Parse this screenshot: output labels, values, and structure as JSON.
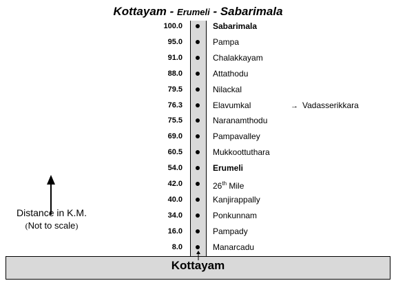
{
  "title": {
    "from": "Kottayam - ",
    "via": "Erumeli",
    "to": " - Sabarimala"
  },
  "stops": [
    {
      "km": "100.0",
      "name": "Sabarimala",
      "bold": true
    },
    {
      "km": "95.0",
      "name": "Pampa"
    },
    {
      "km": "91.0",
      "name": "Chalakkayam"
    },
    {
      "km": "88.0",
      "name": "Attathodu"
    },
    {
      "km": "79.5",
      "name": "Nilackal"
    },
    {
      "km": "76.3",
      "name": "Elavumkal",
      "branch": "Vadasserikkara"
    },
    {
      "km": "75.5",
      "name": "Naranamthodu"
    },
    {
      "km": "69.0",
      "name": "Pampavalley"
    },
    {
      "km": "60.5",
      "name": "Mukkoottuthara"
    },
    {
      "km": "54.0",
      "name": "Erumeli",
      "bold": true
    },
    {
      "km": "42.0",
      "name_prefix": "26",
      "name_sup": "th",
      "name_suffix": " Mile"
    },
    {
      "km": "40.0",
      "name": "Kanjirappally"
    },
    {
      "km": "34.0",
      "name": "Ponkunnam"
    },
    {
      "km": "16.0",
      "name": "Pampady"
    },
    {
      "km": "8.0",
      "name": "Manarcadu"
    }
  ],
  "origin": "Kottayam",
  "legend": {
    "line1": "Distance in K.M.",
    "open_paren": "(",
    "note": "Not to scale",
    "close_paren": ")"
  },
  "icons": {
    "up_arrow": "arrow-up-icon",
    "branch_arrow": "arrow-right-icon",
    "start_arrow": "arrow-up-icon"
  }
}
